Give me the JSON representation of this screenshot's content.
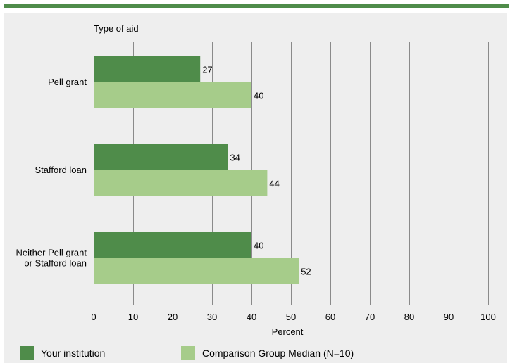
{
  "colors": {
    "accent": "#4f8c4a",
    "your_institution": "#4f8c4a",
    "comparison": "#a6cc8a",
    "panel_bg": "#eeeeee",
    "grid": "#8a8a8a"
  },
  "legend": {
    "your_institution": "Your institution",
    "comparison": "Comparison Group Median (N=10)"
  },
  "chart_data": {
    "type": "bar",
    "orientation": "horizontal",
    "y_axis_title": "Type of aid",
    "xlabel": "Percent",
    "xlim": [
      0,
      100
    ],
    "xticks": [
      0,
      10,
      20,
      30,
      40,
      50,
      60,
      70,
      80,
      90,
      100
    ],
    "grid": true,
    "legend_position": "bottom",
    "categories": [
      [
        "Pell grant"
      ],
      [
        "Stafford loan"
      ],
      [
        "Neither Pell grant",
        "or Stafford loan"
      ]
    ],
    "series": [
      {
        "name": "Your institution",
        "values": [
          27,
          34,
          40
        ]
      },
      {
        "name": "Comparison Group Median (N=10)",
        "values": [
          40,
          44,
          52
        ]
      }
    ]
  }
}
